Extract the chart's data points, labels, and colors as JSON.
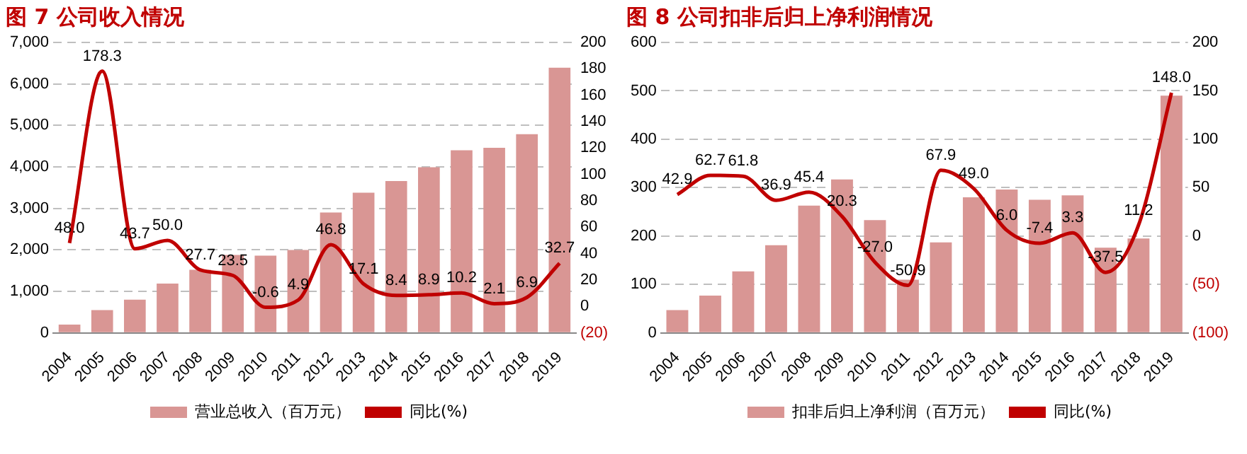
{
  "chart_data": [
    {
      "type": "bar",
      "title": "图 7 公司收入情况",
      "categories": [
        "2004",
        "2005",
        "2006",
        "2007",
        "2008",
        "2009",
        "2010",
        "2011",
        "2012",
        "2013",
        "2014",
        "2015",
        "2016",
        "2017",
        "2018",
        "2019"
      ],
      "series": [
        {
          "name": "营业总收入（百万元）",
          "color": "#d99694",
          "values": [
            200,
            550,
            800,
            1190,
            1520,
            1880,
            1860,
            2000,
            2900,
            3380,
            3660,
            3990,
            4400,
            4460,
            4790,
            6390
          ]
        },
        {
          "name": "同比(%)",
          "type": "line",
          "axis": "y2",
          "color": "#c00000",
          "values": [
            48.0,
            178.3,
            43.7,
            50.0,
            27.7,
            23.5,
            -0.6,
            4.9,
            46.8,
            17.1,
            8.4,
            8.9,
            10.2,
            2.1,
            6.9,
            32.7
          ],
          "value_labels": [
            "48.0",
            "178.3",
            "43.7",
            "50.0",
            "27.7",
            "23.5",
            "-0.6",
            "4.9",
            "46.8",
            "17.1",
            "8.4",
            "8.9",
            "10.2",
            "2.1",
            "6.9",
            "32.7"
          ]
        }
      ],
      "ylim": [
        0,
        7000
      ],
      "yticks": [
        0,
        {
          "value": 1000,
          "label": "1,000"
        },
        {
          "value": 2000,
          "label": "2,000"
        },
        {
          "value": 3000,
          "label": "3,000"
        },
        {
          "value": 4000,
          "label": "4,000"
        },
        {
          "value": 5000,
          "label": "5,000"
        },
        {
          "value": 6000,
          "label": "6,000"
        },
        {
          "value": 7000,
          "label": "7,000"
        }
      ],
      "y2lim": [
        -20,
        200
      ],
      "y2ticks": [
        {
          "value": -20,
          "label": "(20)"
        },
        0,
        20,
        40,
        60,
        80,
        100,
        120,
        140,
        160,
        180,
        200
      ],
      "grid": "y",
      "legend": "bottom",
      "marker": "none",
      "line_style": "solid"
    },
    {
      "type": "bar",
      "title": "图 8 公司扣非后归上净利润情况",
      "categories": [
        "2004",
        "2005",
        "2006",
        "2007",
        "2008",
        "2009",
        "2010",
        "2011",
        "2012",
        "2013",
        "2014",
        "2015",
        "2016",
        "2017",
        "2018",
        "2019"
      ],
      "series": [
        {
          "name": "扣非后归上净利润（百万元）",
          "color": "#d99694",
          "values": [
            47,
            77,
            127,
            181,
            263,
            317,
            233,
            110,
            187,
            280,
            296,
            275,
            284,
            176,
            195,
            490
          ]
        },
        {
          "name": "同比(%)",
          "type": "line",
          "axis": "y2",
          "color": "#c00000",
          "values": [
            42.9,
            62.7,
            61.8,
            36.9,
            45.4,
            20.3,
            -27.0,
            -50.9,
            67.9,
            49.0,
            6.0,
            -7.4,
            3.3,
            -37.5,
            11.2,
            148.0
          ],
          "value_labels": [
            "42.9",
            "62.7",
            "61.8",
            "36.9",
            "45.4",
            "20.3",
            "-27.0",
            "-50.9",
            "67.9",
            "49.0",
            "6.0",
            "-7.4",
            "3.3",
            "-37.5",
            "11.2",
            "148.0"
          ]
        }
      ],
      "ylim": [
        0,
        600
      ],
      "yticks": [
        0,
        100,
        200,
        300,
        400,
        500,
        600
      ],
      "y2lim": [
        -100,
        200
      ],
      "y2ticks": [
        {
          "value": -100,
          "label": "(100)"
        },
        {
          "value": -50,
          "label": "(50)"
        },
        0,
        50,
        100,
        150,
        200
      ],
      "grid": "y",
      "legend": "bottom",
      "marker": "none",
      "line_style": "solid"
    }
  ]
}
